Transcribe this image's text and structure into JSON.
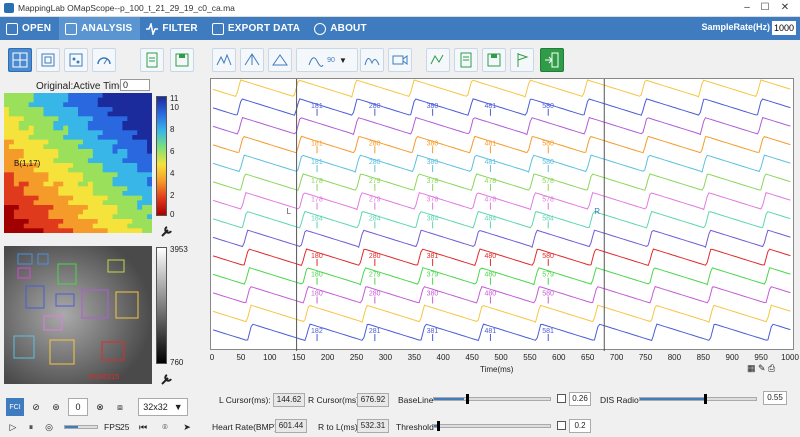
{
  "window": {
    "title": "MappingLab OMapScope--p_100_t_21_29_19_c0_ca.ma"
  },
  "menu": {
    "items": [
      {
        "label": "OPEN",
        "icon": "folder-icon"
      },
      {
        "label": "ANALYSIS",
        "icon": "chart-icon"
      },
      {
        "label": "FILTER",
        "icon": "wave-icon"
      },
      {
        "label": "EXPORT DATA",
        "icon": "export-icon"
      },
      {
        "label": "ABOUT",
        "icon": "info-icon"
      }
    ],
    "active": "ANALYSIS",
    "sample_rate_label": "SampleRate(Hz)",
    "sample_rate_value": "1000"
  },
  "toolbar": {
    "combo_value": "90"
  },
  "left": {
    "mode_label": "Original:Active Time",
    "mode_value": "0",
    "heat_point_label": "B(1,17)",
    "heat_colorbar_ticks": [
      "11",
      "10",
      "8",
      "6",
      "4",
      "2",
      "0"
    ],
    "gray_colorbar_ticks": [
      "3953",
      "760"
    ],
    "gray_timestamp": "20240215"
  },
  "plot": {
    "xlabel": "Time(ms)",
    "xticks": [
      "0",
      "50",
      "100",
      "150",
      "200",
      "250",
      "300",
      "350",
      "400",
      "450",
      "500",
      "550",
      "600",
      "650",
      "700",
      "750",
      "800",
      "850",
      "900",
      "950",
      "1000"
    ],
    "cursor_L_label": "L",
    "cursor_R_label": "R",
    "trace_colors": [
      "#f5c542",
      "#4a5cd6",
      "#b05cd6",
      "#f59b2a",
      "#5bc0de",
      "#8bd65b",
      "#e07ae0",
      "#5cd6b0",
      "#6e5cd6",
      "#e02a2a",
      "#4ad64a",
      "#c45cd6",
      "#f5c542",
      "#4a5cd6"
    ],
    "rows": [
      [
        "181",
        "280",
        "380",
        "481",
        "580"
      ],
      [
        "181",
        "280",
        "380",
        "481",
        "580"
      ],
      [
        "181",
        "280",
        "380",
        "481",
        "580"
      ],
      [
        "178",
        "279",
        "378",
        "478",
        "578"
      ],
      [
        "178",
        "279",
        "378",
        "478",
        "578"
      ],
      [
        "184",
        "284",
        "384",
        "484",
        "584"
      ],
      [
        "180",
        "280",
        "381",
        "480",
        "580"
      ],
      [
        "180",
        "279",
        "379",
        "480",
        "579"
      ],
      [
        "180",
        "280",
        "380",
        "480",
        "580"
      ],
      [
        "182",
        "281",
        "381",
        "481",
        "581"
      ]
    ]
  },
  "bottom": {
    "l_cursor_label": "L Cursor(ms):",
    "l_cursor_value": "144.62",
    "r_cursor_label": "R Cursor(ms):",
    "r_cursor_value": "676.92",
    "baseline_label": "BaseLine",
    "baseline_value": "0.26",
    "dis_radio_label": "DIS Radio",
    "dis_radio_value": "0.55",
    "heart_rate_label": "Heart Rate(BMP):",
    "heart_rate_value": "601.44",
    "r_to_l_label": "R to L(ms):",
    "r_to_l_value": "532.31",
    "threshold_label": "Threshold",
    "threshold_value": "0.2",
    "rotation_value": "0",
    "grid_size": "32x32",
    "fps_label": "FPS",
    "fps_value": "25",
    "fci_label": "FCI"
  }
}
